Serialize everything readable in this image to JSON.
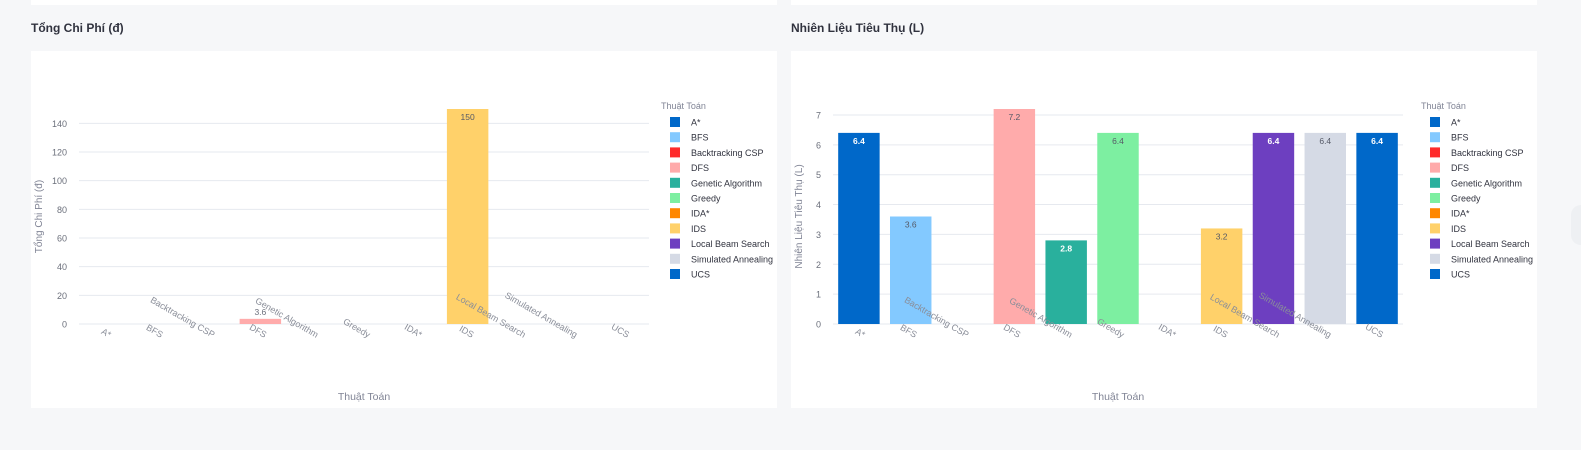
{
  "charts": [
    {
      "heading": "Tổng Chi Phí (đ)",
      "chart_data": {
        "type": "bar",
        "categories": [
          "A*",
          "BFS",
          "Backtracking CSP",
          "DFS",
          "Genetic Algorithm",
          "Greedy",
          "IDA*",
          "IDS",
          "Local Beam Search",
          "Simulated Annealing",
          "UCS"
        ],
        "values": [
          null,
          null,
          null,
          3.6,
          null,
          null,
          null,
          150,
          null,
          null,
          null
        ],
        "value_labels": [
          "",
          "",
          "",
          "3.6",
          "",
          "",
          "",
          "150",
          "",
          "",
          ""
        ],
        "xlabel": "Thuật Toán",
        "ylabel": "Tổng Chi Phí (đ)",
        "ylim": [
          0,
          150
        ],
        "yticks": [
          0,
          20,
          40,
          60,
          80,
          100,
          120,
          140
        ],
        "grid": true,
        "legend_title": "Thuật Toán",
        "legend_position": "right"
      }
    },
    {
      "heading": "Nhiên Liệu Tiêu Thụ (L)",
      "chart_data": {
        "type": "bar",
        "categories": [
          "A*",
          "BFS",
          "Backtracking CSP",
          "DFS",
          "Genetic Algorithm",
          "Greedy",
          "IDA*",
          "IDS",
          "Local Beam Search",
          "Simulated Annealing",
          "UCS"
        ],
        "values": [
          6.4,
          3.6,
          null,
          7.2,
          2.8,
          6.4,
          null,
          3.2,
          6.4,
          6.4,
          6.4
        ],
        "value_labels": [
          "6.4",
          "3.6",
          "",
          "7.2",
          "2.8",
          "6.4",
          "",
          "3.2",
          "6.4",
          "6.4",
          "6.4"
        ],
        "xlabel": "Thuật Toán",
        "ylabel": "Nhiên Liệu Tiêu Thụ (L)",
        "ylim": [
          0,
          7.2
        ],
        "yticks": [
          0,
          1,
          2,
          3,
          4,
          5,
          6,
          7
        ],
        "grid": true,
        "legend_title": "Thuật Toán",
        "legend_position": "right"
      }
    }
  ],
  "colors": {
    "A*": "#0068c9",
    "BFS": "#83c9ff",
    "Backtracking CSP": "#ff2b2b",
    "DFS": "#ffabab",
    "Genetic Algorithm": "#29b09d",
    "Greedy": "#7defa1",
    "IDA*": "#ff8700",
    "IDS": "#ffd16a",
    "Local Beam Search": "#6d3fc0",
    "Simulated Annealing": "#d5dae5",
    "UCS": "#0068c9"
  }
}
